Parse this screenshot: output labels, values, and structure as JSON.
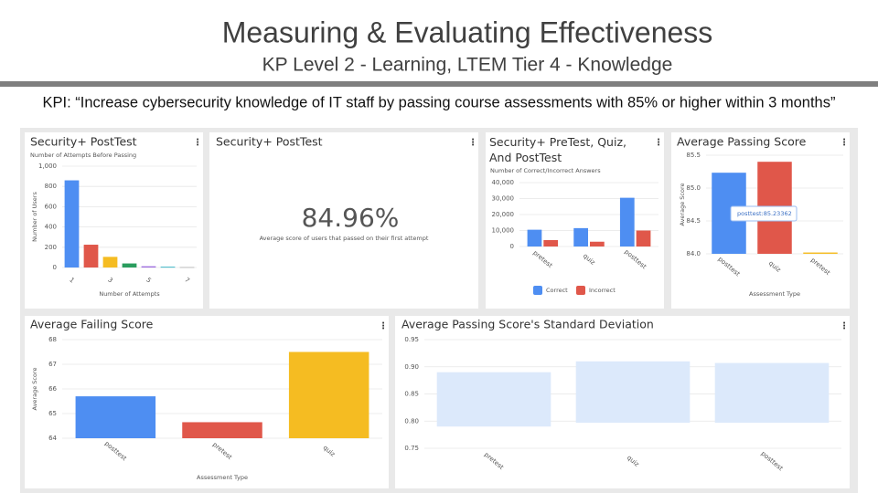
{
  "header": {
    "title": "Measuring & Evaluating Effectiveness",
    "subtitle": "KP Level 2 - Learning, LTEM Tier 4 - Knowledge"
  },
  "kpi": "KPI: “Increase cybersecurity knowledge of IT staff by passing course assessments with 85% or higher within 3 months”",
  "scorecard": {
    "title": "Security+ PostTest",
    "value": "84.96%",
    "caption": "Average score of users that passed on their first attempt"
  },
  "chart_data": [
    {
      "type": "bar",
      "title": "Security+ PostTest",
      "subtitle": "Number of Attempts Before Passing",
      "y_label": "Number of Users",
      "x_label": "Number of Attempts",
      "categories": [
        "1",
        null,
        "3",
        null,
        "5",
        null,
        "7"
      ],
      "values": [
        860,
        225,
        105,
        40,
        12,
        8,
        5
      ],
      "colors": [
        "#4e8ef2",
        "#e0574a",
        "#f5bc22",
        "#2a9d5e",
        "#9c6ade",
        "#3fb6c6",
        "#bbbbbb"
      ],
      "ylim": [
        0,
        1000
      ],
      "yticks": [
        0,
        200,
        400,
        600,
        800,
        {
          "value": 1000,
          "label": "1,000"
        }
      ],
      "grid": true
    },
    {
      "type": "bar",
      "title": "Security+ PreTest, Quiz, And PostTest",
      "subtitle": "Number of Correct/Incorrect Answers",
      "categories": [
        "pretest",
        "quiz",
        "posttest"
      ],
      "series": [
        {
          "name": "Correct",
          "color": "#4e8ef2",
          "values": [
            10500,
            11500,
            30500
          ]
        },
        {
          "name": "Incorrect",
          "color": "#e0574a",
          "values": [
            4000,
            3000,
            10000
          ]
        }
      ],
      "ylim": [
        0,
        40000
      ],
      "yticks": [
        0,
        {
          "value": 10000,
          "label": "10,000"
        },
        {
          "value": 20000,
          "label": "20,000"
        },
        {
          "value": 30000,
          "label": "30,000"
        },
        {
          "value": 40000,
          "label": "40,000"
        }
      ],
      "grid": true,
      "legend": "bottom"
    },
    {
      "type": "bar",
      "title": "Average Passing Score",
      "y_label": "Average Score",
      "x_label": "Assessment Type",
      "categories": [
        "posttest",
        "quiz",
        "pretest"
      ],
      "values": [
        85.23362,
        85.4,
        84.02
      ],
      "colors": [
        "#4e8ef2",
        "#e0574a",
        "#f5bc22"
      ],
      "ylim": [
        84,
        85.5
      ],
      "yticks": [
        {
          "value": 84,
          "label": "84.0"
        },
        84.5,
        {
          "value": 85,
          "label": "85.0"
        },
        85.5
      ],
      "grid": true,
      "tooltip": "posttest:85.23362"
    },
    {
      "type": "bar",
      "title": "Average Failing Score",
      "y_label": "Average Score",
      "x_label": "Assessment Type",
      "categories": [
        "posttest",
        "pretest",
        "quiz"
      ],
      "values": [
        65.7,
        64.65,
        67.5
      ],
      "colors": [
        "#4e8ef2",
        "#e0574a",
        "#f5bc22"
      ],
      "ylim": [
        64,
        68
      ],
      "yticks": [
        64,
        65,
        66,
        67,
        68
      ],
      "grid": true
    },
    {
      "type": "range_bar",
      "title": "Average Passing Score's Standard Deviation",
      "categories": [
        "pretest",
        "quiz",
        "posttest"
      ],
      "low": [
        0.79,
        0.797,
        0.797
      ],
      "high": [
        0.89,
        0.91,
        0.907
      ],
      "color": "#dce9fb",
      "ylim": [
        0.75,
        0.95
      ],
      "yticks": [
        0.75,
        {
          "value": 0.8,
          "label": "0.80"
        },
        0.85,
        {
          "value": 0.9,
          "label": "0.90"
        },
        0.95
      ],
      "grid": true
    }
  ]
}
